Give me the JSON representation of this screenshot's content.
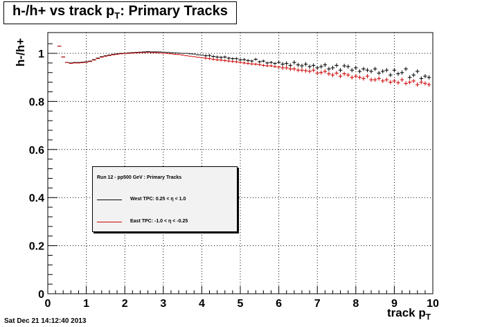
{
  "title": {
    "main": "h-/h+ vs track p",
    "sub": "T",
    "tail": ": Primary Tracks"
  },
  "footer_date": "Sat Dec 21 14:12:40 2013",
  "chart_data": {
    "type": "scatter",
    "xlabel": "track p",
    "xlabel_sub": "T",
    "ylabel": "h-/h+",
    "xlim": [
      0,
      10
    ],
    "ylim": [
      0,
      1.05
    ],
    "xticks": [
      "0",
      "1",
      "2",
      "3",
      "4",
      "5",
      "6",
      "7",
      "8",
      "9",
      "10"
    ],
    "yticks": [
      "0",
      "0.2",
      "0.4",
      "0.6",
      "0.8",
      "1"
    ],
    "grid": true,
    "legend_position": "center-left",
    "legend_title": "Run 12 - pp500 GeV : Primary Tracks",
    "series": [
      {
        "name": "West TPC: 0.25 <     η < 1.0",
        "color": "#000000",
        "x": [
          0.3,
          0.4,
          0.5,
          0.6,
          0.7,
          0.8,
          0.9,
          1.0,
          1.1,
          1.2,
          1.3,
          1.4,
          1.5,
          1.6,
          1.7,
          1.8,
          1.9,
          2.0,
          2.1,
          2.2,
          2.3,
          2.4,
          2.5,
          2.6,
          2.7,
          2.8,
          2.9,
          3.0,
          3.1,
          3.2,
          3.3,
          3.4,
          3.5,
          3.6,
          3.7,
          3.8,
          3.9,
          4.0,
          4.1,
          4.2,
          4.3,
          4.4,
          4.5,
          4.6,
          4.7,
          4.8,
          4.9,
          5.0,
          5.1,
          5.2,
          5.3,
          5.4,
          5.5,
          5.6,
          5.7,
          5.8,
          5.9,
          6.0,
          6.1,
          6.2,
          6.3,
          6.4,
          6.5,
          6.6,
          6.7,
          6.8,
          6.9,
          7.0,
          7.1,
          7.2,
          7.3,
          7.4,
          7.5,
          7.6,
          7.7,
          7.8,
          7.9,
          8.0,
          8.1,
          8.2,
          8.3,
          8.4,
          8.5,
          8.6,
          8.7,
          8.8,
          8.9,
          9.0,
          9.1,
          9.2,
          9.3,
          9.4,
          9.5,
          9.6,
          9.7,
          9.8,
          9.9
        ],
        "y": [
          1.03,
          0.985,
          0.962,
          0.96,
          0.962,
          0.962,
          0.963,
          0.965,
          0.968,
          0.974,
          0.98,
          0.986,
          0.99,
          0.993,
          0.996,
          0.998,
          1.0,
          1.0,
          1.002,
          1.003,
          1.004,
          1.005,
          1.006,
          1.007,
          1.006,
          1.006,
          1.006,
          1.005,
          1.004,
          1.003,
          1.002,
          1.001,
          1.0,
          1.0,
          0.998,
          0.997,
          0.994,
          0.993,
          0.99,
          0.991,
          0.987,
          0.985,
          0.983,
          0.985,
          0.98,
          0.978,
          0.978,
          0.973,
          0.974,
          0.97,
          0.968,
          0.975,
          0.965,
          0.968,
          0.96,
          0.962,
          0.958,
          0.962,
          0.955,
          0.958,
          0.95,
          0.962,
          0.952,
          0.948,
          0.955,
          0.945,
          0.95,
          0.94,
          0.945,
          0.952,
          0.935,
          0.94,
          0.95,
          0.93,
          0.948,
          0.945,
          0.93,
          0.94,
          0.925,
          0.935,
          0.93,
          0.925,
          0.935,
          0.918,
          0.925,
          0.93,
          0.91,
          0.93,
          0.915,
          0.92,
          0.935,
          0.9,
          0.91,
          0.925,
          0.895,
          0.905,
          0.9
        ]
      },
      {
        "name": "East TPC: -1.0 <     η < -0.25",
        "color": "#cc0000",
        "x": [
          0.3,
          0.4,
          0.5,
          0.6,
          0.7,
          0.8,
          0.9,
          1.0,
          1.1,
          1.2,
          1.3,
          1.4,
          1.5,
          1.6,
          1.7,
          1.8,
          1.9,
          2.0,
          2.1,
          2.2,
          2.3,
          2.4,
          2.5,
          2.6,
          2.7,
          2.8,
          2.9,
          3.0,
          3.1,
          3.2,
          3.3,
          3.4,
          3.5,
          3.6,
          3.7,
          3.8,
          3.9,
          4.0,
          4.1,
          4.2,
          4.3,
          4.4,
          4.5,
          4.6,
          4.7,
          4.8,
          4.9,
          5.0,
          5.1,
          5.2,
          5.3,
          5.4,
          5.5,
          5.6,
          5.7,
          5.8,
          5.9,
          6.0,
          6.1,
          6.2,
          6.3,
          6.4,
          6.5,
          6.6,
          6.7,
          6.8,
          6.9,
          7.0,
          7.1,
          7.2,
          7.3,
          7.4,
          7.5,
          7.6,
          7.7,
          7.8,
          7.9,
          8.0,
          8.1,
          8.2,
          8.3,
          8.4,
          8.5,
          8.6,
          8.7,
          8.8,
          8.9,
          9.0,
          9.1,
          9.2,
          9.3,
          9.4,
          9.5,
          9.6,
          9.7,
          9.8,
          9.9
        ],
        "y": [
          1.03,
          0.985,
          0.962,
          0.958,
          0.96,
          0.96,
          0.961,
          0.963,
          0.966,
          0.972,
          0.978,
          0.984,
          0.988,
          0.991,
          0.994,
          0.996,
          0.998,
          0.999,
          1.0,
          1.001,
          1.002,
          1.003,
          1.003,
          1.004,
          1.003,
          1.003,
          1.002,
          1.0,
          0.999,
          0.998,
          0.996,
          0.995,
          0.993,
          0.99,
          0.988,
          0.986,
          0.984,
          0.982,
          0.98,
          0.978,
          0.975,
          0.973,
          0.972,
          0.97,
          0.968,
          0.966,
          0.965,
          0.962,
          0.96,
          0.958,
          0.956,
          0.955,
          0.953,
          0.95,
          0.948,
          0.948,
          0.945,
          0.943,
          0.94,
          0.94,
          0.935,
          0.935,
          0.93,
          0.93,
          0.928,
          0.925,
          0.93,
          0.918,
          0.92,
          0.925,
          0.915,
          0.91,
          0.918,
          0.905,
          0.915,
          0.91,
          0.9,
          0.905,
          0.9,
          0.895,
          0.905,
          0.89,
          0.89,
          0.895,
          0.885,
          0.89,
          0.88,
          0.885,
          0.878,
          0.89,
          0.875,
          0.88,
          0.885,
          0.87,
          0.88,
          0.875,
          0.87
        ]
      }
    ]
  }
}
